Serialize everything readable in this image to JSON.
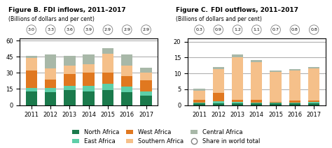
{
  "chart_data": [
    {
      "type": "bar",
      "stacked": true,
      "annotation": "Figure B.",
      "title": "FDI inflows, 2011–2017",
      "subtitle": "(Billions of dollars and per cent)",
      "categories": [
        "2011",
        "2012",
        "2013",
        "2014",
        "2015",
        "2016",
        "2017"
      ],
      "series": [
        {
          "name": "North Africa",
          "color": "#1b7a4c",
          "values": [
            13,
            12,
            14,
            13,
            14,
            12,
            9
          ]
        },
        {
          "name": "East Africa",
          "color": "#5ecfa8",
          "values": [
            3,
            4,
            4,
            5,
            6,
            5,
            4
          ]
        },
        {
          "name": "West Africa",
          "color": "#e07820",
          "values": [
            16,
            8,
            11,
            12,
            10,
            10,
            10
          ]
        },
        {
          "name": "Southern Africa",
          "color": "#f5c08a",
          "values": [
            12,
            10,
            8,
            8,
            18,
            10,
            7
          ]
        },
        {
          "name": "Central Africa",
          "color": "#a8b8a8",
          "values": [
            2,
            13,
            9,
            9,
            5,
            10,
            5
          ]
        }
      ],
      "shares": {
        "name": "Share in world total",
        "values": [
          3.0,
          3.3,
          3.6,
          3.9,
          2.9,
          2.9,
          2.9
        ]
      },
      "ylim": [
        0,
        62
      ],
      "yticks": [
        0,
        15,
        30,
        45,
        60
      ],
      "grid": true,
      "legend": "lower center"
    },
    {
      "type": "bar",
      "stacked": true,
      "annotation": "Figure C.",
      "title": "FDI outflows, 2011–2017",
      "subtitle": "(Billions of dollars and per cent)",
      "categories": [
        "2011",
        "2012",
        "2013",
        "2014",
        "2015",
        "2016",
        "2017"
      ],
      "series": [
        {
          "name": "North Africa",
          "color": "#1b7a4c",
          "values": [
            0.5,
            0.5,
            0.5,
            0.5,
            0.5,
            0.5,
            0.5
          ]
        },
        {
          "name": "East Africa",
          "color": "#5ecfa8",
          "values": [
            0.3,
            0.8,
            0.5,
            0.3,
            0.3,
            0.3,
            0.4
          ]
        },
        {
          "name": "West Africa",
          "color": "#e07820",
          "values": [
            0.8,
            2.5,
            0.6,
            0.8,
            0.2,
            0.6,
            0.6
          ]
        },
        {
          "name": "Southern Africa",
          "color": "#f5c08a",
          "values": [
            3.0,
            7.5,
            13.5,
            12.0,
            9.5,
            9.5,
            10.0
          ]
        },
        {
          "name": "Central Africa",
          "color": "#a8b8a8",
          "values": [
            0.5,
            0.8,
            0.9,
            0.5,
            0.5,
            0.5,
            0.5
          ]
        }
      ],
      "shares": {
        "name": "Share in world total",
        "values": [
          0.3,
          0.9,
          1.2,
          1.1,
          0.7,
          0.8,
          0.8
        ]
      },
      "ylim": [
        0,
        21
      ],
      "yticks": [
        0,
        5,
        10,
        15,
        20
      ],
      "grid": true
    }
  ]
}
